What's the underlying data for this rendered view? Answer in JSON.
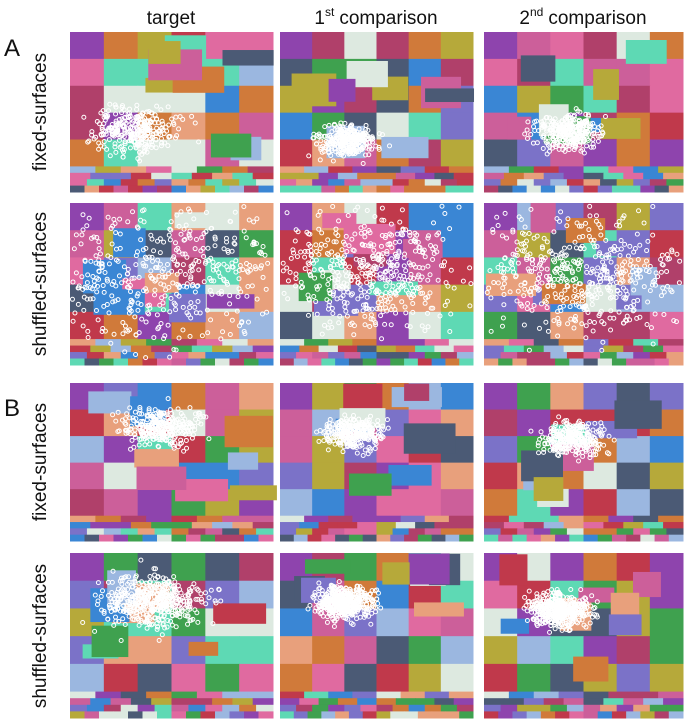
{
  "figure": {
    "columns": [
      {
        "text": "target"
      },
      {
        "number": "1",
        "suffix": "st",
        "text": "comparison"
      },
      {
        "number": "2",
        "suffix": "nd",
        "text": "comparison"
      }
    ],
    "panels": [
      {
        "label": "A",
        "rows": [
          {
            "label": "fixed-surfaces"
          },
          {
            "label": "shuffled-surfaces"
          }
        ]
      },
      {
        "label": "B",
        "rows": [
          {
            "label": "fixed-surfaces"
          },
          {
            "label": "shuffled-surfaces"
          }
        ]
      }
    ]
  }
}
